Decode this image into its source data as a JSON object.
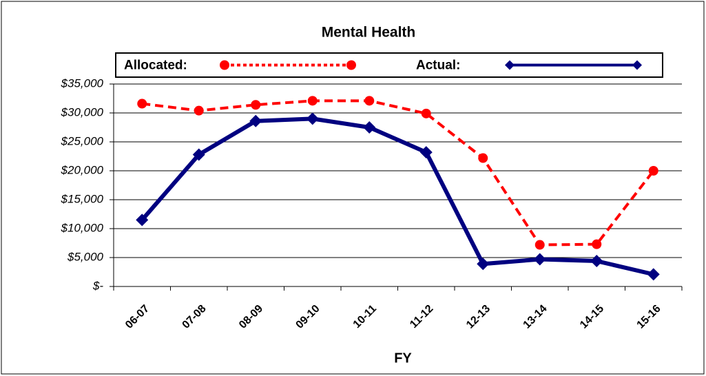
{
  "chart_data": {
    "type": "line",
    "title": "Mental Health",
    "xlabel": "FY",
    "categories": [
      "06-07",
      "07-08",
      "08-09",
      "09-10",
      "10-11",
      "11-12",
      "12-13",
      "13-14",
      "14-15",
      "15-16"
    ],
    "series": [
      {
        "name": "Allocated:",
        "color": "#ff0000",
        "marker": "circle",
        "dashed": true,
        "values": [
          31600,
          30400,
          31400,
          32100,
          32100,
          29900,
          22200,
          7200,
          7300,
          20000
        ]
      },
      {
        "name": "Actual:",
        "color": "#000080",
        "marker": "diamond",
        "dashed": false,
        "values": [
          11500,
          22800,
          28600,
          29000,
          27500,
          23200,
          3900,
          4700,
          4400,
          2100
        ]
      }
    ],
    "ylim": [
      0,
      35000
    ],
    "yticks": [
      {
        "value": 0,
        "label": "$-"
      },
      {
        "value": 5000,
        "label": "$5,000"
      },
      {
        "value": 10000,
        "label": "$10,000"
      },
      {
        "value": 15000,
        "label": "$15,000"
      },
      {
        "value": 20000,
        "label": "$20,000"
      },
      {
        "value": 25000,
        "label": "$25,000"
      },
      {
        "value": 30000,
        "label": "$30,000"
      },
      {
        "value": 35000,
        "label": "$35,000"
      }
    ],
    "grid": true,
    "legend": "top"
  }
}
